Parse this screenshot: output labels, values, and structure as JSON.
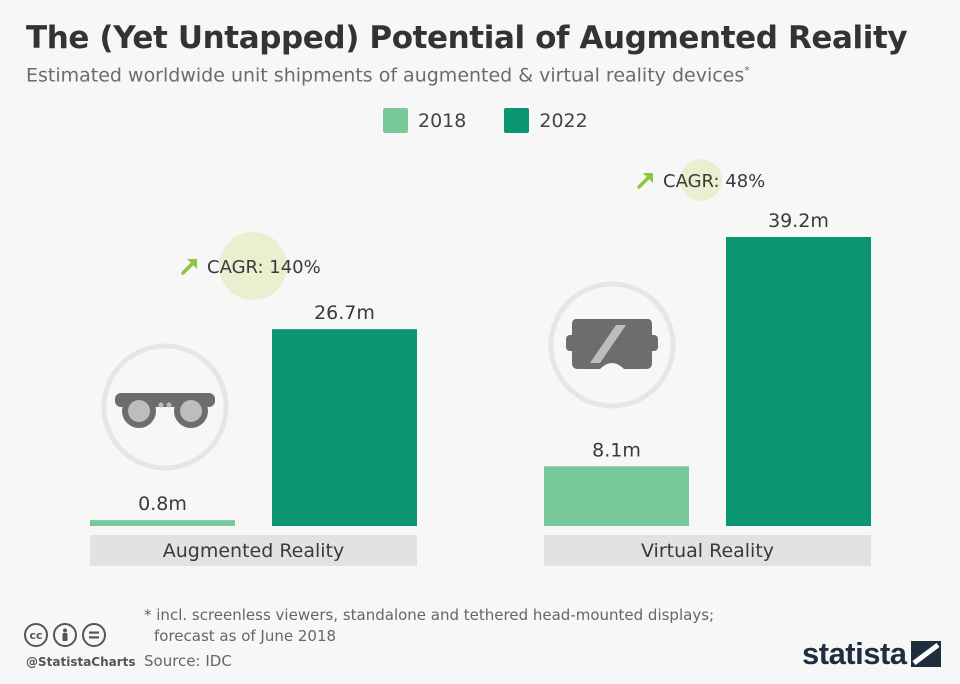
{
  "header": {
    "title": "The (Yet Untapped) Potential of Augmented Reality",
    "subtitle": "Estimated worldwide unit shipments of augmented & virtual reality devices",
    "subtitle_mark": "*"
  },
  "legend": [
    {
      "label": "2018",
      "color": "#79c89a"
    },
    {
      "label": "2022",
      "color": "#0c9572"
    }
  ],
  "chart_data": {
    "type": "bar",
    "categories": [
      "Augmented Reality",
      "Virtual Reality"
    ],
    "series": [
      {
        "name": "2018",
        "values": [
          0.8,
          8.1
        ],
        "color": "#79c89a"
      },
      {
        "name": "2022",
        "values": [
          26.7,
          39.2
        ],
        "color": "#0c9572"
      }
    ],
    "value_labels": [
      [
        "0.8m",
        "26.7m"
      ],
      [
        "8.1m",
        "39.2m"
      ]
    ],
    "unit": "m",
    "ylim": [
      0,
      39.2
    ],
    "grid": false,
    "legend_position": "top-center",
    "annotations": [
      {
        "category": "Augmented Reality",
        "text": "CAGR: 140%"
      },
      {
        "category": "Virtual Reality",
        "text": "CAGR: 48%"
      }
    ],
    "category_icons": [
      "ar-glasses-icon",
      "vr-headset-icon"
    ]
  },
  "footer": {
    "footnote_line1": "* incl. screenless viewers, standalone and tethered head-mounted displays;",
    "footnote_line2": "forecast as of June 2018",
    "source": "Source: IDC",
    "handle": "@StatistaCharts",
    "brand": "statista",
    "cc_icons": [
      "cc-icon",
      "by-icon",
      "nd-icon"
    ]
  },
  "colors": {
    "accent_arrow": "#8dc63f",
    "cagr_circle": "#e8f0d0",
    "category_bar": "#e2e2e2",
    "icon_circle": "#e6e6e6",
    "icon_fill": "#6d6d6d"
  }
}
